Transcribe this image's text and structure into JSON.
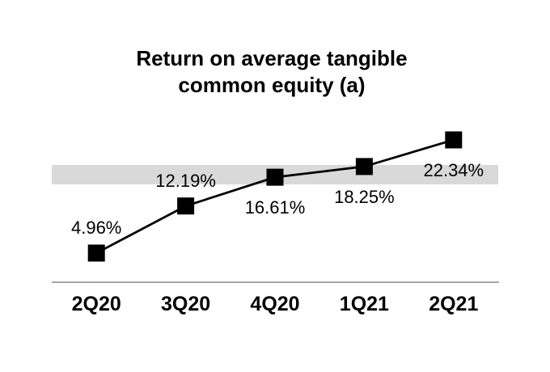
{
  "chart_data": {
    "type": "line",
    "title": "Return on average tangible common equity (a)",
    "categories": [
      "2Q20",
      "3Q20",
      "4Q20",
      "1Q21",
      "2Q21"
    ],
    "values": [
      4.96,
      12.19,
      16.61,
      18.25,
      22.34
    ],
    "point_labels": [
      "4.96%",
      "12.19%",
      "16.61%",
      "18.25%",
      "22.34%"
    ],
    "label_positions": [
      "above",
      "above",
      "below",
      "below",
      "below"
    ],
    "ylim": [
      0,
      28
    ],
    "xlabel": "",
    "ylabel": "",
    "grid": false,
    "legend_position": "none",
    "marker_shape": "square",
    "highlight_band": {
      "from": 15.5,
      "to": 18.5
    },
    "colors": {
      "line": "#000000",
      "marker": "#000000",
      "band": "#d9d9d9",
      "axis_line": "#a6a6a6",
      "text": "#000000",
      "background": "#ffffff"
    }
  }
}
